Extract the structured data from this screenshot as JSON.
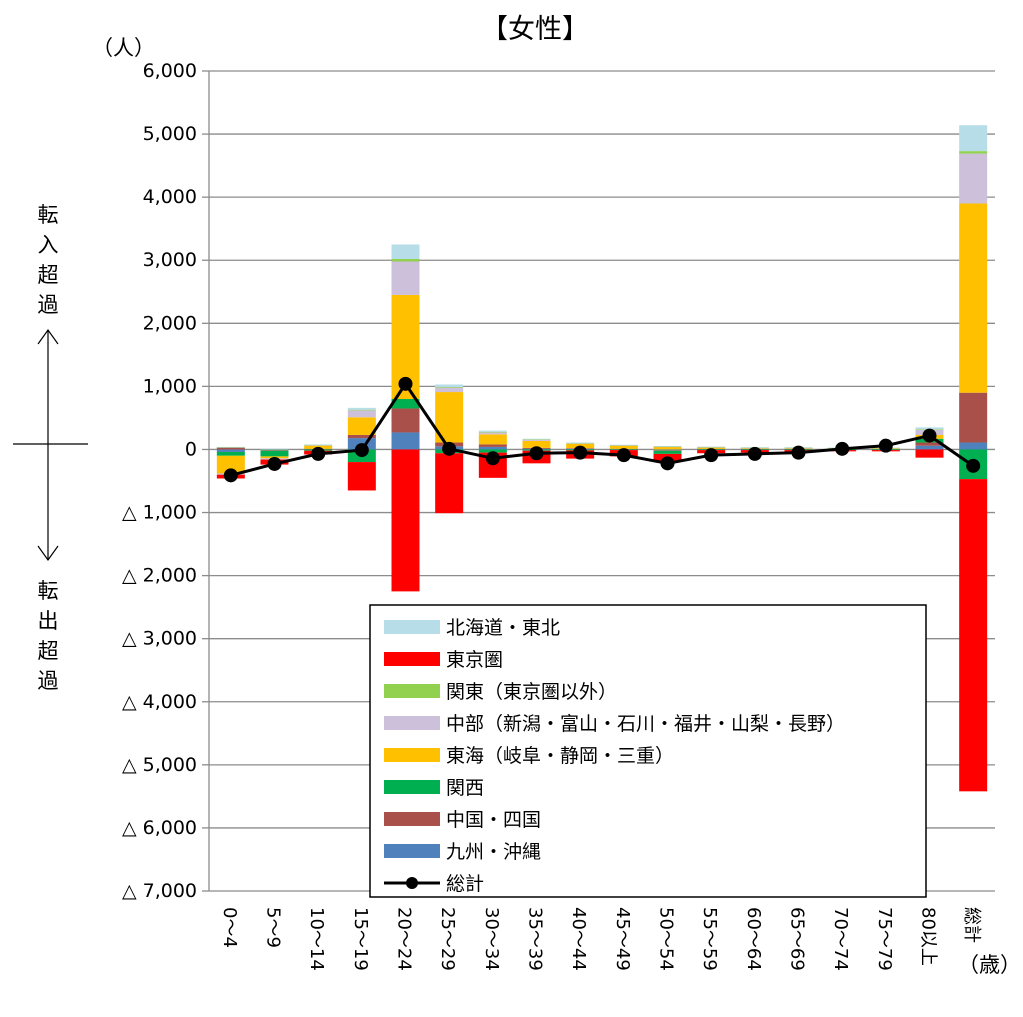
{
  "chart_data": {
    "type": "bar",
    "stacked": true,
    "title": "【女性】",
    "y_unit": "（人）",
    "x_unit": "（歳）",
    "ylim": [
      -7000,
      6000
    ],
    "yticks": [
      6000,
      5000,
      4000,
      3000,
      2000,
      1000,
      0,
      -1000,
      -2000,
      -3000,
      -4000,
      -5000,
      -6000,
      -7000
    ],
    "ytick_labels": [
      "6,000",
      "5,000",
      "4,000",
      "3,000",
      "2,000",
      "1,000",
      "0",
      "△ 1,000",
      "△ 2,000",
      "△ 3,000",
      "△ 4,000",
      "△ 5,000",
      "△ 6,000",
      "△ 7,000"
    ],
    "grid": true,
    "legend_position": "bottom-center",
    "side_labels": {
      "upper": "転入超過",
      "lower": "転出超過"
    },
    "categories": [
      "0～4",
      "5～9",
      "10～14",
      "15～19",
      "20～24",
      "25～29",
      "30～34",
      "35～39",
      "40～44",
      "45～49",
      "50～54",
      "55～59",
      "60～64",
      "65～69",
      "70～74",
      "75～79",
      "80以上",
      "総計"
    ],
    "series": [
      {
        "name": "九州・沖縄",
        "color": "#4F81BD",
        "values": [
          -40,
          -10,
          5,
          180,
          270,
          50,
          40,
          10,
          10,
          5,
          -10,
          5,
          5,
          5,
          5,
          5,
          60,
          110
        ]
      },
      {
        "name": "中国・四国",
        "color": "#A9504A",
        "values": [
          30,
          -10,
          5,
          50,
          380,
          60,
          40,
          15,
          10,
          5,
          -10,
          5,
          5,
          5,
          5,
          5,
          50,
          790
        ]
      },
      {
        "name": "関西",
        "color": "#00B050",
        "values": [
          -60,
          -90,
          -20,
          -200,
          150,
          -60,
          -50,
          -20,
          -15,
          -10,
          -50,
          -10,
          -10,
          -10,
          -10,
          -10,
          60,
          -470
        ]
      },
      {
        "name": "東海（岐阜・静岡・三重）",
        "color": "#FFC000",
        "values": [
          -280,
          -30,
          50,
          280,
          1650,
          800,
          160,
          110,
          70,
          50,
          40,
          20,
          10,
          10,
          5,
          5,
          60,
          3000
        ]
      },
      {
        "name": "中部（新潟・富山・石川・福井・山梨・長野）",
        "color": "#CCC0DA",
        "values": [
          -20,
          -20,
          10,
          110,
          530,
          70,
          30,
          20,
          10,
          5,
          5,
          5,
          5,
          5,
          5,
          5,
          80,
          790
        ]
      },
      {
        "name": "関東（東京圏以外）",
        "color": "#92D050",
        "values": [
          5,
          5,
          5,
          10,
          40,
          10,
          10,
          5,
          5,
          5,
          5,
          5,
          5,
          5,
          5,
          5,
          10,
          40
        ]
      },
      {
        "name": "東京圏",
        "color": "#FF0000",
        "values": [
          -60,
          -80,
          -60,
          -450,
          -2250,
          -950,
          -400,
          -200,
          -130,
          -100,
          -130,
          -50,
          -40,
          -30,
          -20,
          -20,
          -130,
          -4950
        ]
      },
      {
        "name": "北海道・東北",
        "color": "#B7DEE8",
        "values": [
          5,
          5,
          5,
          30,
          230,
          40,
          20,
          10,
          5,
          5,
          5,
          5,
          5,
          5,
          5,
          5,
          30,
          410
        ]
      },
      {
        "name": "総計",
        "color": "#000000",
        "type": "line",
        "values": [
          -410,
          -230,
          -70,
          -10,
          1040,
          10,
          -140,
          -60,
          -50,
          -90,
          -220,
          -90,
          -70,
          -50,
          10,
          60,
          220,
          -260
        ]
      }
    ]
  }
}
